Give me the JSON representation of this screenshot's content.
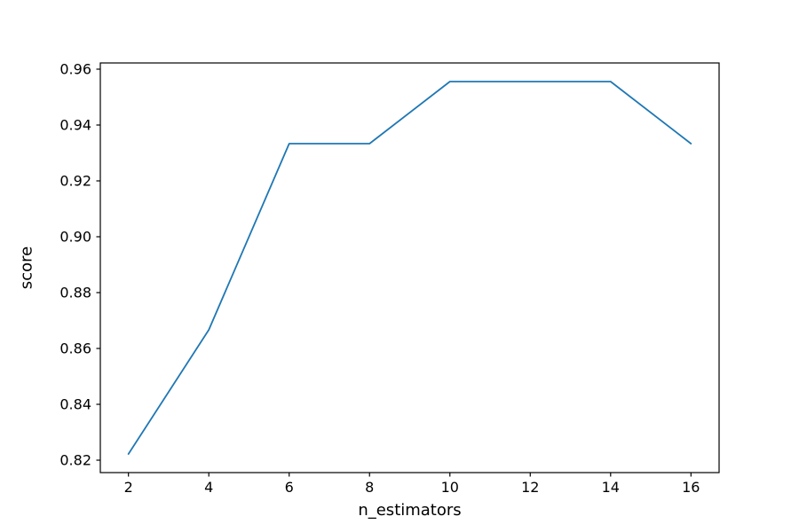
{
  "chart_data": {
    "type": "line",
    "title": "",
    "xlabel": "n_estimators",
    "ylabel": "score",
    "x": [
      2,
      4,
      6,
      8,
      10,
      12,
      14,
      16
    ],
    "series": [
      {
        "name": "score",
        "values": [
          0.82222,
          0.86667,
          0.93333,
          0.93333,
          0.95556,
          0.95556,
          0.95556,
          0.93333
        ],
        "color": "#1f77b4",
        "line_width": 1.8
      }
    ],
    "xlim": [
      1.3,
      16.7
    ],
    "ylim": [
      0.815556,
      0.962222
    ],
    "xticks": [
      2,
      4,
      6,
      8,
      10,
      12,
      14,
      16
    ],
    "yticks": [
      0.82,
      0.84,
      0.86,
      0.88,
      0.9,
      0.92,
      0.94,
      0.96
    ],
    "ytick_format_decimals": 2,
    "grid": false,
    "legend_position": "none",
    "frame_color": "#000000",
    "background_color": "#ffffff"
  },
  "labels": {
    "xlabel": "n_estimators",
    "ylabel": "score"
  }
}
